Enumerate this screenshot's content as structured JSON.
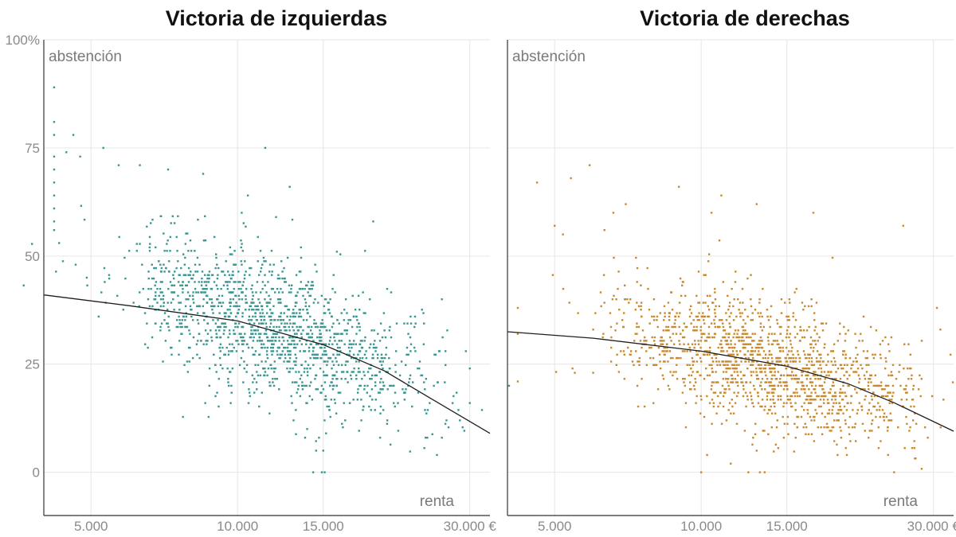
{
  "chart_data": [
    {
      "type": "scatter",
      "title": "Victoria de izquierdas",
      "color": "#3a9690",
      "ylabel": "abstención",
      "xlabel": "renta",
      "x_scale": "log",
      "xlim": [
        4000,
        33000
      ],
      "ylim": [
        -10,
        100
      ],
      "x_ticks": [
        5000,
        10000,
        15000,
        30000
      ],
      "x_tick_labels": [
        "5.000",
        "10.000",
        "15.000",
        "30.000 €"
      ],
      "y_ticks": [
        0,
        25,
        50,
        75,
        100
      ],
      "y_tick_labels": [
        "0",
        "25",
        "50",
        "75",
        "100%"
      ],
      "cloud": {
        "x_center": 11500,
        "x_spread": 0.32,
        "y_center": 34,
        "y_slope": -12,
        "y_spread": 8,
        "n": 1600,
        "seed": 7
      },
      "trend": [
        [
          4000,
          41
        ],
        [
          6000,
          38.5
        ],
        [
          10000,
          35
        ],
        [
          15000,
          29.5
        ],
        [
          20000,
          23.5
        ],
        [
          25000,
          17
        ],
        [
          33000,
          9
        ]
      ],
      "outliers": [
        [
          4200,
          89
        ],
        [
          4200,
          81
        ],
        [
          4200,
          78
        ],
        [
          4200,
          73
        ],
        [
          4200,
          70
        ],
        [
          4200,
          67
        ],
        [
          4200,
          64
        ],
        [
          4200,
          61
        ],
        [
          4200,
          58
        ],
        [
          4200,
          56
        ],
        [
          4600,
          78
        ],
        [
          4450,
          74
        ],
        [
          4750,
          73
        ],
        [
          5300,
          75
        ],
        [
          4300,
          53
        ],
        [
          4650,
          48
        ],
        [
          4900,
          45
        ],
        [
          5700,
          71
        ],
        [
          6300,
          71
        ],
        [
          7200,
          70
        ],
        [
          8500,
          69
        ],
        [
          11400,
          75
        ],
        [
          10500,
          64
        ],
        [
          12800,
          66
        ],
        [
          10200,
          60
        ],
        [
          12000,
          59
        ],
        [
          13500,
          52
        ],
        [
          16000,
          51
        ],
        [
          19000,
          58
        ],
        [
          26000,
          28
        ],
        [
          30000,
          24
        ],
        [
          14300,
          0
        ],
        [
          14900,
          0
        ],
        [
          15100,
          0
        ],
        [
          14500,
          5
        ],
        [
          15000,
          5
        ],
        [
          14700,
          8
        ],
        [
          13900,
          10
        ],
        [
          15200,
          9
        ]
      ]
    },
    {
      "type": "scatter",
      "title": "Victoria de derechas",
      "color": "#c98a2f",
      "ylabel": "abstención",
      "xlabel": "renta",
      "x_scale": "log",
      "xlim": [
        4000,
        33000
      ],
      "ylim": [
        -10,
        100
      ],
      "x_ticks": [
        5000,
        10000,
        15000,
        30000
      ],
      "x_tick_labels": [
        "5.000",
        "10.000",
        "15.000",
        "30.000 €"
      ],
      "y_ticks": [
        0,
        25,
        50,
        75,
        100
      ],
      "y_tick_labels": [
        "0",
        "25",
        "50",
        "75",
        "100%"
      ],
      "cloud": {
        "x_center": 14000,
        "x_spread": 0.3,
        "y_center": 25,
        "y_slope": -9,
        "y_spread": 7.5,
        "n": 1600,
        "seed": 13
      },
      "trend": [
        [
          4000,
          32.5
        ],
        [
          6000,
          31
        ],
        [
          10000,
          28
        ],
        [
          15000,
          24.5
        ],
        [
          20000,
          20.5
        ],
        [
          25000,
          16
        ],
        [
          33000,
          9.5
        ]
      ],
      "outliers": [
        [
          4600,
          67
        ],
        [
          5900,
          71
        ],
        [
          5400,
          68
        ],
        [
          4200,
          38
        ],
        [
          4200,
          32
        ],
        [
          4200,
          21
        ],
        [
          5000,
          57
        ],
        [
          5200,
          55
        ],
        [
          6600,
          60
        ],
        [
          7000,
          62
        ],
        [
          9000,
          66
        ],
        [
          10500,
          60
        ],
        [
          11000,
          64
        ],
        [
          13000,
          62
        ],
        [
          17000,
          60
        ],
        [
          26000,
          57
        ],
        [
          6000,
          33
        ],
        [
          5500,
          23
        ],
        [
          6000,
          23
        ],
        [
          30500,
          38
        ],
        [
          31000,
          33
        ],
        [
          10000,
          0
        ],
        [
          12500,
          0
        ],
        [
          13200,
          0
        ],
        [
          13500,
          0
        ],
        [
          11500,
          2
        ],
        [
          13000,
          5
        ]
      ]
    }
  ]
}
